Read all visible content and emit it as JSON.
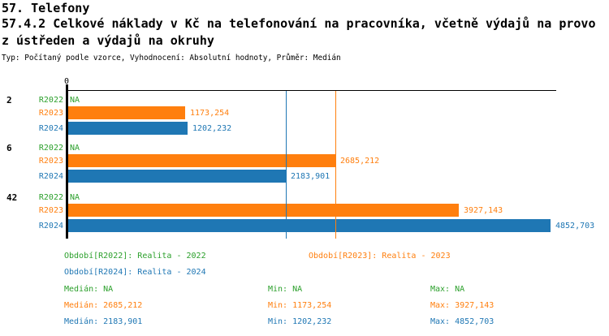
{
  "header": {
    "title": "57. Telefony",
    "subtitle_line1": "57.4.2 Celkové náklady v Kč na telefonování na pracovníka, včetně výdajů na provo",
    "subtitle_line2": "z ústředen a výdajů na okruhy",
    "meta": "Typ: Počítaný podle vzorce, Vyhodnocení: Absolutní hodnoty, Průměr: Medián"
  },
  "colors": {
    "r2022_green": "#2ca02c",
    "r2023_orange": "#ff7f0e",
    "r2024_blue": "#1f77b4",
    "axis_black": "#000000",
    "background": "#ffffff"
  },
  "chart_data": {
    "type": "bar",
    "orientation": "horizontal",
    "title": "57. Telefony",
    "subtitle": "57.4.2 Celkové náklady v Kč na telefonování na pracovníka, včetně výdajů na provoz ústředen a výdajů na okruhy",
    "x_origin_label": "0",
    "xlim": [
      0,
      4905
    ],
    "grid": false,
    "categories": [
      "2",
      "6",
      "42"
    ],
    "series": [
      {
        "name": "R2022",
        "color": "#2ca02c",
        "values": [
          null,
          null,
          null
        ],
        "labels": [
          "NA",
          "NA",
          "NA"
        ]
      },
      {
        "name": "R2023",
        "color": "#ff7f0e",
        "values": [
          1173.254,
          2685.212,
          3927.143
        ],
        "labels": [
          "1173,254",
          "2685,212",
          "3927,143"
        ]
      },
      {
        "name": "R2024",
        "color": "#1f77b4",
        "values": [
          1202.232,
          2183.901,
          4852.703
        ],
        "labels": [
          "1202,232",
          "2183,901",
          "4852,703"
        ]
      }
    ],
    "median_lines": [
      {
        "series": "R2023",
        "value": 2685.212,
        "color": "#ff7f0e"
      },
      {
        "series": "R2024",
        "value": 2183.901,
        "color": "#1f77b4"
      }
    ]
  },
  "legend": [
    {
      "series": "R2022",
      "text": "Období[R2022]: Realita - 2022"
    },
    {
      "series": "R2023",
      "text": "Období[R2023]: Realita - 2023"
    },
    {
      "series": "R2024",
      "text": "Období[R2024]: Realita - 2024"
    }
  ],
  "stats": [
    {
      "series": "R2022",
      "median": "Medián: NA",
      "min": "Min: NA",
      "max": "Max: NA"
    },
    {
      "series": "R2023",
      "median": "Medián: 2685,212",
      "min": "Min: 1173,254",
      "max": "Max: 3927,143"
    },
    {
      "series": "R2024",
      "median": "Medián: 2183,901",
      "min": "Min: 1202,232",
      "max": "Max: 4852,703"
    }
  ]
}
